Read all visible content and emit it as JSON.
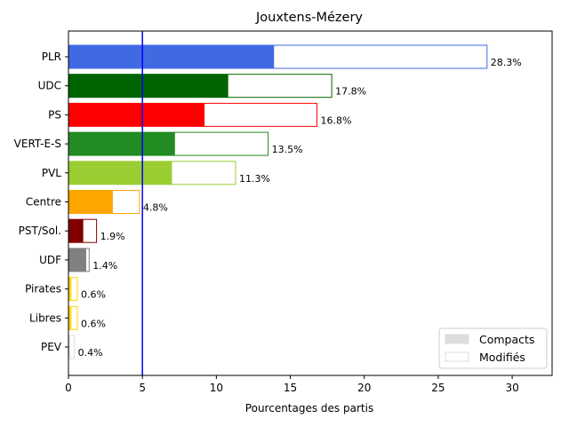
{
  "chart_data": {
    "type": "bar",
    "orientation": "horizontal",
    "title": "Jouxtens-Mézery",
    "xlabel": "Pourcentages des partis",
    "ylabel": "",
    "xlim": [
      0,
      32.7
    ],
    "xticks": [
      0,
      5,
      10,
      15,
      20,
      25,
      30
    ],
    "reference_line": {
      "x": 5,
      "color": "#0000ff"
    },
    "categories": [
      "PLR",
      "UDC",
      "PS",
      "VERT-E-S",
      "PVL",
      "Centre",
      "PST/Sol.",
      "UDF",
      "Pirates",
      "Libres",
      "PEV"
    ],
    "colors": [
      "#4169e1",
      "#006400",
      "#ff0000",
      "#228b22",
      "#9acd32",
      "#ffa500",
      "#800000",
      "#808080",
      "#ffd700",
      "#ffd700",
      "#dcdcdc"
    ],
    "series": [
      {
        "name": "Compacts",
        "values": [
          13.9,
          10.8,
          9.2,
          7.2,
          7.0,
          3.0,
          1.0,
          1.2,
          0.2,
          0.2,
          0.1
        ]
      },
      {
        "name": "Modifiés",
        "values": [
          28.3,
          17.8,
          16.8,
          13.5,
          11.3,
          4.8,
          1.9,
          1.4,
          0.6,
          0.6,
          0.4
        ]
      }
    ],
    "data_labels": [
      "28.3%",
      "17.8%",
      "16.8%",
      "13.5%",
      "11.3%",
      "4.8%",
      "1.9%",
      "1.4%",
      "0.6%",
      "0.6%",
      "0.4%"
    ],
    "legend": {
      "position": "lower-right",
      "entries": [
        {
          "label": "Compacts",
          "fill": "#dcdcdc",
          "stroke": "#dcdcdc"
        },
        {
          "label": "Modifiés",
          "fill": "#ffffff",
          "stroke": "#dcdcdc"
        }
      ]
    },
    "grid": false
  }
}
